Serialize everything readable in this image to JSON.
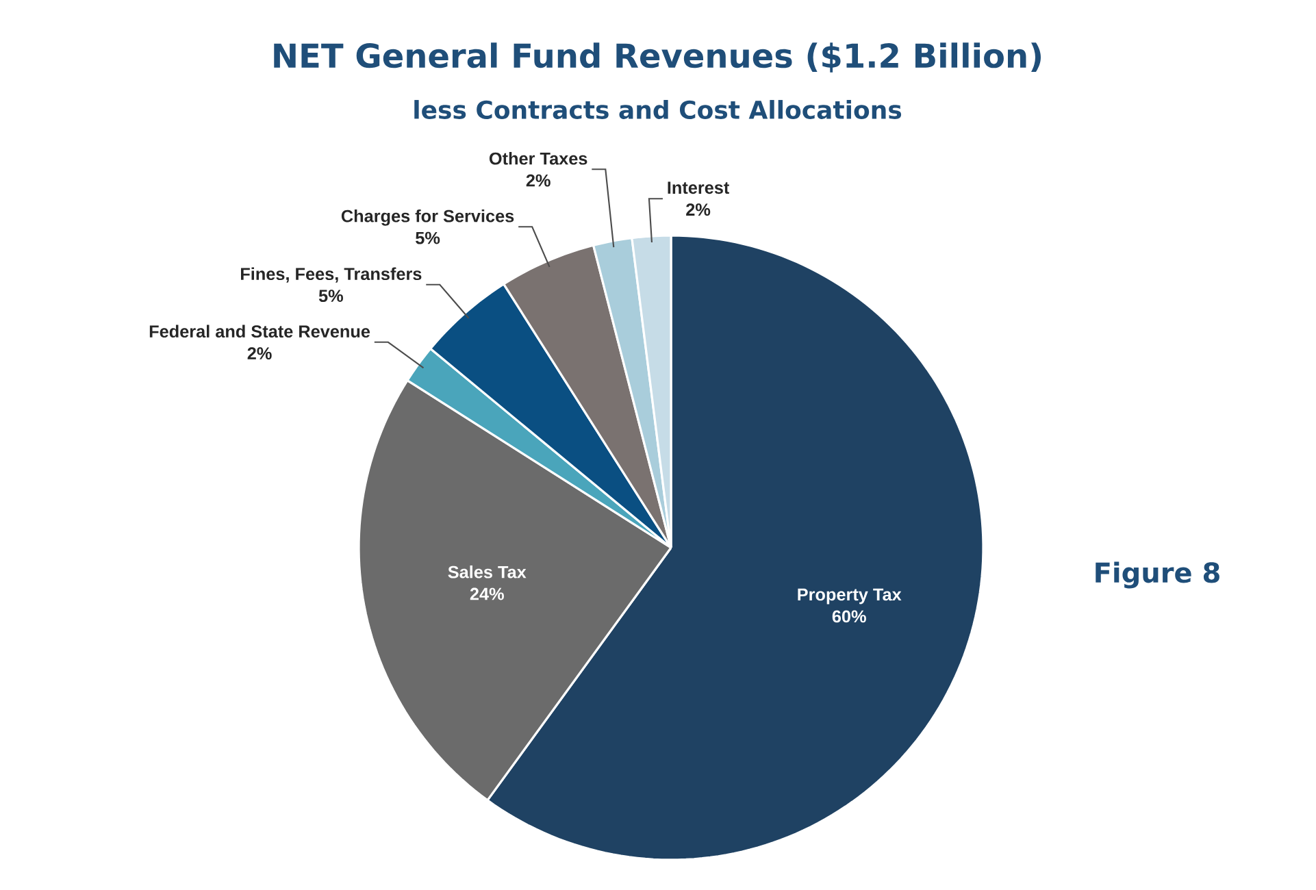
{
  "chart_data": {
    "type": "pie",
    "title": "NET General Fund Revenues ($1.2 Billion)",
    "subtitle": "less Contracts and Cost Allocations",
    "categories": [
      "Property Tax",
      "Sales Tax",
      "Federal and State Revenue",
      "Fines, Fees, Transfers",
      "Charges for Services",
      "Other Taxes",
      "Interest"
    ],
    "values": [
      60,
      24,
      2,
      5,
      5,
      2,
      2
    ],
    "value_labels": [
      "60%",
      "24%",
      "2%",
      "5%",
      "5%",
      "2%",
      "2%"
    ],
    "colors": [
      "#1f4263",
      "#6b6b6b",
      "#4aa5bb",
      "#0a4f82",
      "#7a7270",
      "#a9cddb",
      "#c6dce7"
    ],
    "annotations": [
      "Figure 8"
    ]
  }
}
